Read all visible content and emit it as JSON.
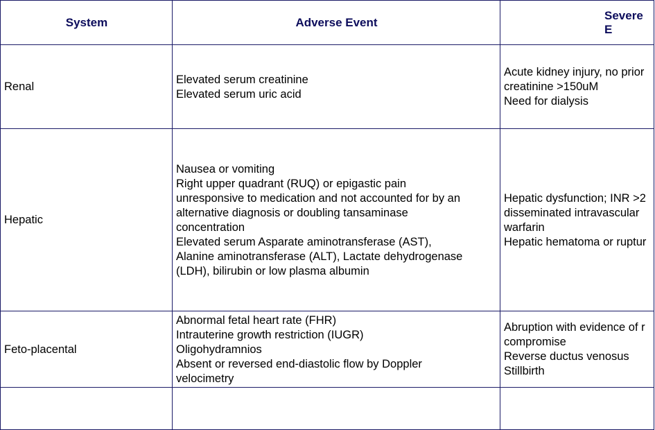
{
  "headers": [
    "System",
    "Adverse Event",
    "Severe E"
  ],
  "rows": [
    {
      "system": "Renal",
      "adverse": [
        "Elevated serum creatinine",
        "Elevated serum uric acid"
      ],
      "severe": [
        "Acute kidney injury, no prior",
        "creatinine >150uM",
        "Need for dialysis"
      ]
    },
    {
      "system": "Hepatic",
      "adverse": [
        "Nausea or vomiting",
        "Right upper quadrant (RUQ) or epigastic pain",
        "unresponsive to medication and not accounted for by an",
        "alternative diagnosis or doubling tansaminase",
        "concentration",
        "Elevated serum Asparate aminotransferase (AST),",
        "Alanine aminotransferase (ALT), Lactate dehydrogenase",
        "(LDH), bilirubin or low plasma albumin"
      ],
      "severe": [
        "Hepatic dysfunction; INR >2",
        "disseminated intravascular",
        "warfarin",
        "Hepatic hematoma or ruptur"
      ]
    },
    {
      "system": "Feto-placental",
      "adverse": [
        "Abnormal fetal heart rate (FHR)",
        "Intrauterine growth restriction (IUGR)",
        "Oligohydramnios",
        "Absent or reversed end-diastolic flow by Doppler",
        "velocimetry"
      ],
      "severe": [
        "Abruption with evidence of r",
        "compromise",
        "Reverse ductus venosus",
        "Stillbirth"
      ]
    }
  ],
  "colors": {
    "border": "#1a1a66",
    "header_text": "#0d0d5c"
  }
}
